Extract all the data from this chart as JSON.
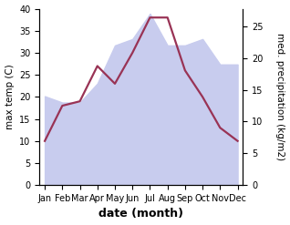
{
  "months": [
    "Jan",
    "Feb",
    "Mar",
    "Apr",
    "May",
    "Jun",
    "Jul",
    "Aug",
    "Sep",
    "Oct",
    "Nov",
    "Dec"
  ],
  "max_temp": [
    10.0,
    18.0,
    19.0,
    27.0,
    23.0,
    30.0,
    38.0,
    38.0,
    26.0,
    20.0,
    13.0,
    10.0
  ],
  "precipitation": [
    14.0,
    13.0,
    13.0,
    16.0,
    22.0,
    23.0,
    27.0,
    22.0,
    22.0,
    23.0,
    19.0,
    19.0
  ],
  "precip_fill_color": "#c8ccee",
  "temp_line_color": "#993355",
  "temp_ylim": [
    0,
    40
  ],
  "precip_ylim": [
    0,
    27.78
  ],
  "xlabel": "date (month)",
  "ylabel_left": "max temp (C)",
  "ylabel_right": "med. precipitation (kg/m2)",
  "label_fontsize": 8,
  "tick_fontsize": 7,
  "xlabel_fontsize": 9
}
